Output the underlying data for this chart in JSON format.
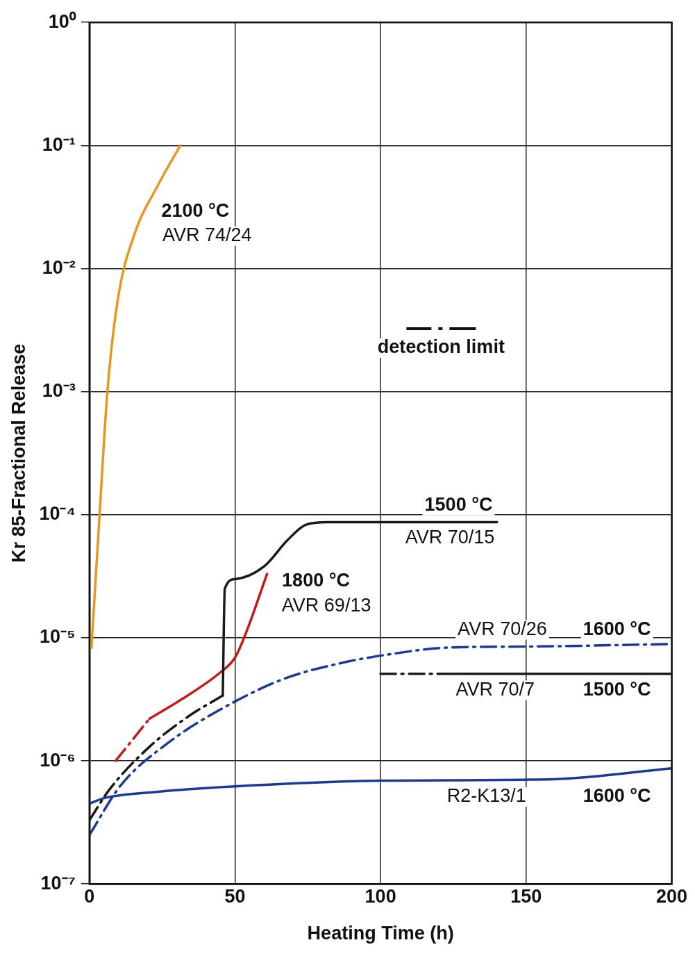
{
  "chart_data": {
    "type": "line",
    "xlabel": "Heating Time (h)",
    "ylabel": "Kr 85-Fractional Release",
    "log": "y",
    "grid": true,
    "legend": false,
    "marker": "none",
    "xlim": [
      0,
      200
    ],
    "xticks": [
      0,
      50,
      100,
      150,
      200
    ],
    "ylim": [
      1e-07,
      1
    ],
    "yticks": [
      {
        "value": 1e-07,
        "label": "10⁻⁷"
      },
      {
        "value": 1e-06,
        "label": "10⁻⁶"
      },
      {
        "value": 1e-05,
        "label": "10⁻⁵"
      },
      {
        "value": 0.0001,
        "label": "10⁻⁴"
      },
      {
        "value": 0.001,
        "label": "10⁻³"
      },
      {
        "value": 0.01,
        "label": "10⁻²"
      },
      {
        "value": 0.1,
        "label": "10⁻¹"
      },
      {
        "value": 1,
        "label": "10⁰"
      }
    ],
    "series": [
      {
        "color": "#e8961e",
        "line_style": "solid",
        "x": [
          0.7,
          3.6,
          6.1,
          9.7,
          15.8,
          23,
          31.2
        ],
        "values": [
          8.3e-06,
          0.00011,
          0.00095,
          0.0055,
          0.02,
          0.045,
          0.1
        ]
      },
      {
        "color": "#1a1a1a",
        "line_style": "dashed",
        "x": [
          0,
          7,
          20.6,
          34,
          45.8
        ],
        "values": [
          3.3e-07,
          5.9e-07,
          1.3e-06,
          2.3e-06,
          3.4e-06
        ]
      },
      {
        "color": "#1a1a1a",
        "line_style": "solid",
        "x": [
          45.8,
          46.5,
          50,
          60,
          68,
          74.4,
          81.7,
          140
        ],
        "values": [
          3.4e-06,
          2.5e-05,
          3e-05,
          3.8e-05,
          6.2e-05,
          8.3e-05,
          8.7e-05,
          8.7e-05
        ]
      },
      {
        "color": "#c41a1a",
        "line_style": "dashed",
        "x": [
          9,
          20.6
        ],
        "values": [
          1e-06,
          2.2e-06
        ]
      },
      {
        "color": "#c41a1a",
        "line_style": "solid",
        "x": [
          20.6,
          32,
          44.8,
          50,
          53.8,
          61
        ],
        "values": [
          2.2e-06,
          3.2e-06,
          5.2e-06,
          6.9e-06,
          1.1e-05,
          3.3e-05
        ]
      },
      {
        "color": "#1a3a9a",
        "line_style": "dashed",
        "x": [
          0,
          10.7,
          27,
          44.8,
          66.4,
          86,
          104,
          122,
          152,
          200
        ],
        "values": [
          2.5e-07,
          6.3e-07,
          1.4e-06,
          2.6e-06,
          4.6e-06,
          6.2e-06,
          7.4e-06,
          8.3e-06,
          8.5e-06,
          8.9e-06
        ]
      },
      {
        "color": "#1a1a1a",
        "line_style": "dashed",
        "x": [
          100,
          125
        ],
        "values": [
          5.1e-06,
          5.1e-06
        ]
      },
      {
        "color": "#1a1a1a",
        "line_style": "solid",
        "x": [
          125,
          200
        ],
        "values": [
          5.1e-06,
          5.1e-06
        ]
      },
      {
        "color": "#1a3a9a",
        "line_style": "solid",
        "x": [
          0,
          5.3,
          23,
          50,
          100,
          159.5,
          200
        ],
        "values": [
          4.5e-07,
          5e-07,
          5.6e-07,
          6.2e-07,
          6.9e-07,
          7.1e-07,
          8.7e-07
        ]
      }
    ],
    "annotations": [
      "2100 °C",
      "AVR 74/24",
      "1500 °C",
      "AVR 70/15",
      "1800 °C",
      "AVR 69/13",
      "1600 °C",
      "AVR 70/26",
      "1500 °C",
      "AVR 70/7",
      "1600 °C",
      "R2-K13/1",
      "detection limit"
    ]
  }
}
